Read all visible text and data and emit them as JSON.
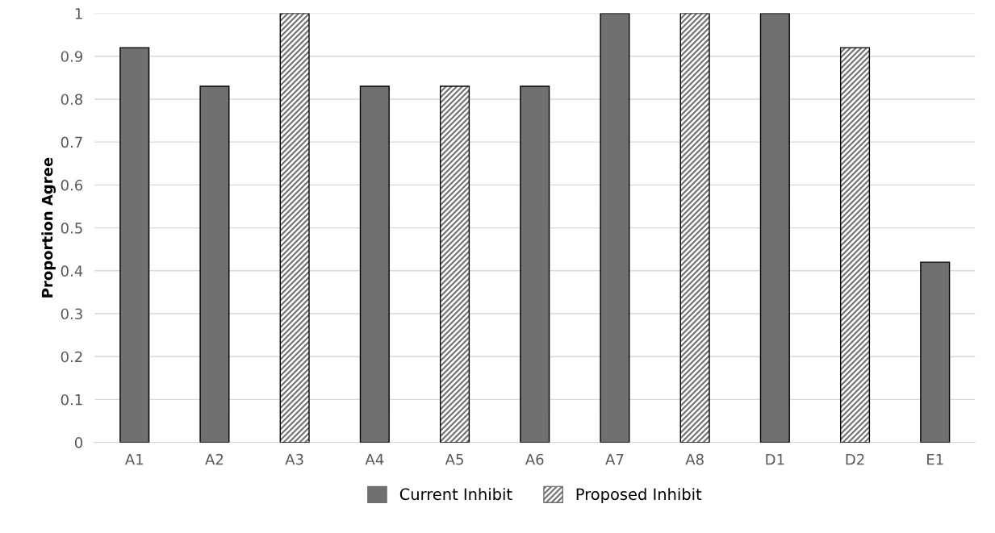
{
  "chart_data": {
    "type": "bar",
    "ylabel": "Proportion Agree",
    "categories": [
      "A1",
      "A2",
      "A3",
      "A4",
      "A5",
      "A6",
      "A7",
      "A8",
      "D1",
      "D2",
      "E1"
    ],
    "series": [
      {
        "name": "Current Inhibit",
        "color": "#707070",
        "values": [
          0.92,
          0.83,
          null,
          0.83,
          null,
          0.83,
          1,
          null,
          1,
          null,
          0.42
        ]
      },
      {
        "name": "Proposed Inhibit",
        "color": "#707070",
        "values": [
          null,
          null,
          1,
          null,
          0.83,
          null,
          null,
          1,
          null,
          0.92,
          null
        ]
      }
    ],
    "ylim": [
      0,
      1
    ],
    "yticks": [
      0,
      0.1,
      0.2,
      0.3,
      0.4,
      0.5,
      0.6,
      0.7,
      0.8,
      0.9,
      1
    ],
    "grid": "y",
    "legend": "bottom"
  }
}
